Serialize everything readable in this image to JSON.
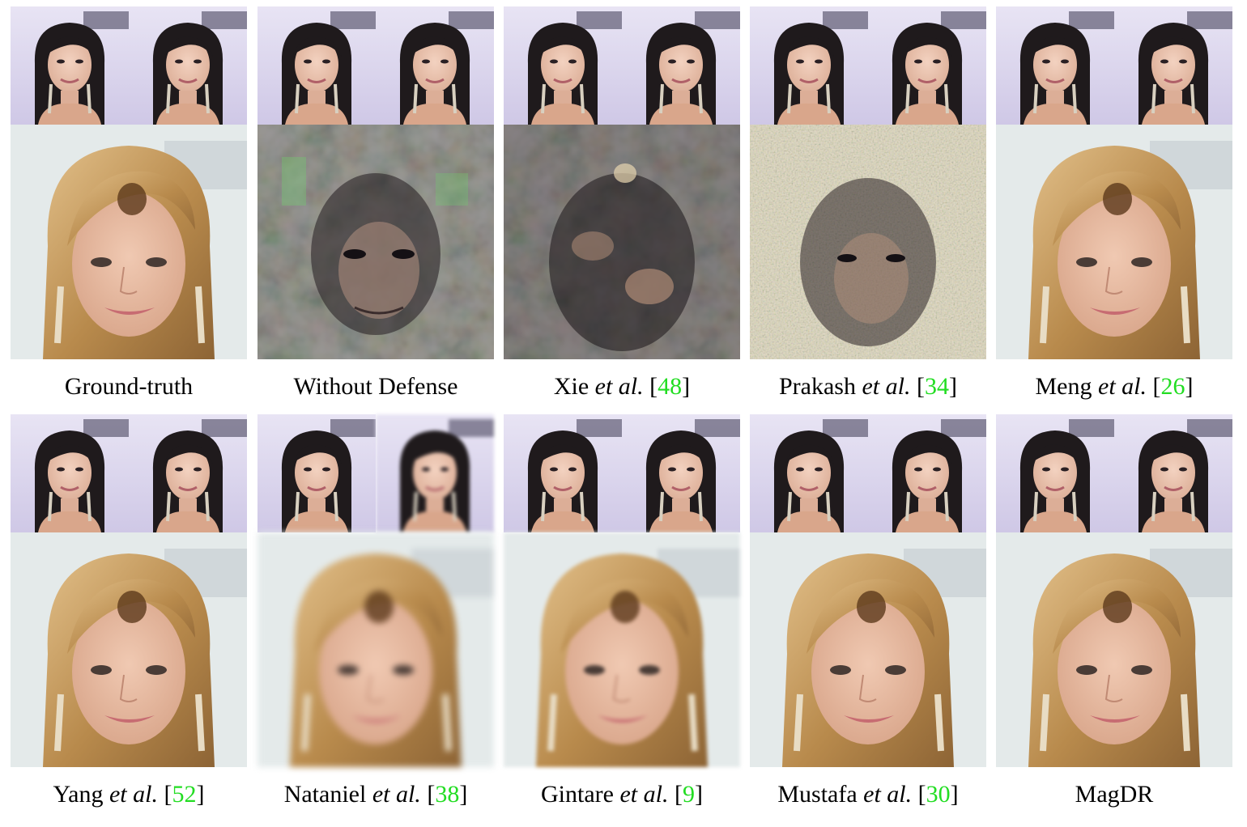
{
  "figure": {
    "rows": [
      {
        "cells": [
          {
            "name": "Ground-truth",
            "author": "",
            "etal": "",
            "ref": "",
            "style": "clean"
          },
          {
            "name": "Without Defense",
            "author": "",
            "etal": "",
            "ref": "",
            "style": "dark-noise"
          },
          {
            "name": "",
            "author": "Xie",
            "etal": "et al.",
            "ref": "48",
            "style": "dark-noise"
          },
          {
            "name": "",
            "author": "Prakash",
            "etal": "et al.",
            "ref": "34",
            "style": "speckle"
          },
          {
            "name": "",
            "author": "Meng",
            "etal": "et al.",
            "ref": "26",
            "style": "clean"
          }
        ]
      },
      {
        "cells": [
          {
            "name": "",
            "author": "Yang",
            "etal": "et al.",
            "ref": "52",
            "style": "clean"
          },
          {
            "name": "",
            "author": "Nataniel",
            "etal": "et al.",
            "ref": "38",
            "style": "blur"
          },
          {
            "name": "",
            "author": "Gintare",
            "etal": "et al.",
            "ref": "9",
            "style": "blur-light"
          },
          {
            "name": "",
            "author": "Mustafa",
            "etal": "et al.",
            "ref": "30",
            "style": "clean"
          },
          {
            "name": "MagDR",
            "author": "",
            "etal": "",
            "ref": "",
            "style": "clean"
          }
        ]
      }
    ],
    "colors": {
      "ref_link": "#22dd22",
      "thumb_bg": "#dcd6ee",
      "main_bg": "#e4eaea",
      "blonde_hair": "#c9a063",
      "dark_hair": "#1f1a1c",
      "skin": "#e4b9a0"
    }
  }
}
